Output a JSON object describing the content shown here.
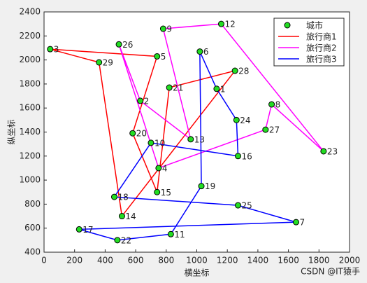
{
  "chart_data": {
    "type": "route",
    "xlabel": "横坐标",
    "ylabel": "纵坐标",
    "xlim": [
      0,
      2000
    ],
    "ylim": [
      400,
      2400
    ],
    "xticks": [
      0,
      200,
      400,
      600,
      800,
      1000,
      1200,
      1400,
      1600,
      1800,
      2000
    ],
    "yticks": [
      400,
      600,
      800,
      1000,
      1200,
      1400,
      1600,
      1800,
      2000,
      2200,
      2400
    ],
    "legend": "upper right",
    "cities": {
      "name": "城市",
      "color": "#22dd22",
      "points": [
        {
          "label": "1",
          "x": 1130,
          "y": 1760
        },
        {
          "label": "2",
          "x": 630,
          "y": 1660
        },
        {
          "label": "3",
          "x": 40,
          "y": 2090
        },
        {
          "label": "4",
          "x": 750,
          "y": 1100
        },
        {
          "label": "5",
          "x": 740,
          "y": 2030
        },
        {
          "label": "6",
          "x": 1020,
          "y": 2070
        },
        {
          "label": "7",
          "x": 1650,
          "y": 650
        },
        {
          "label": "8",
          "x": 1490,
          "y": 1630
        },
        {
          "label": "9",
          "x": 780,
          "y": 2260
        },
        {
          "label": "10",
          "x": 700,
          "y": 1310
        },
        {
          "label": "11",
          "x": 830,
          "y": 550
        },
        {
          "label": "12",
          "x": 1160,
          "y": 2300
        },
        {
          "label": "13",
          "x": 960,
          "y": 1340
        },
        {
          "label": "14",
          "x": 510,
          "y": 700
        },
        {
          "label": "15",
          "x": 740,
          "y": 900
        },
        {
          "label": "16",
          "x": 1270,
          "y": 1200
        },
        {
          "label": "17",
          "x": 230,
          "y": 590
        },
        {
          "label": "18",
          "x": 460,
          "y": 860
        },
        {
          "label": "19",
          "x": 1030,
          "y": 950
        },
        {
          "label": "20",
          "x": 580,
          "y": 1390
        },
        {
          "label": "21",
          "x": 820,
          "y": 1770
        },
        {
          "label": "22",
          "x": 480,
          "y": 500
        },
        {
          "label": "23",
          "x": 1830,
          "y": 1240
        },
        {
          "label": "24",
          "x": 1260,
          "y": 1500
        },
        {
          "label": "25",
          "x": 1270,
          "y": 790
        },
        {
          "label": "26",
          "x": 490,
          "y": 2130
        },
        {
          "label": "27",
          "x": 1450,
          "y": 1420
        },
        {
          "label": "28",
          "x": 1250,
          "y": 1910
        },
        {
          "label": "29",
          "x": 360,
          "y": 1980
        }
      ]
    },
    "series": [
      {
        "name": "旅行商1",
        "color": "#ff0000",
        "stops": [
          "3",
          "5",
          "20",
          "15",
          "21",
          "28",
          "14",
          "29"
        ]
      },
      {
        "name": "旅行商2",
        "color": "#ff00ff",
        "stops": [
          "13",
          "9",
          "12",
          "23",
          "8",
          "27",
          "4",
          "26",
          "2"
        ]
      },
      {
        "name": "旅行商3",
        "color": "#0000ff",
        "stops": [
          "6",
          "1",
          "24",
          "16",
          "10",
          "18",
          "25",
          "7",
          "17",
          "22",
          "11",
          "19"
        ]
      }
    ],
    "watermark": "CSDN @IT猿手"
  }
}
